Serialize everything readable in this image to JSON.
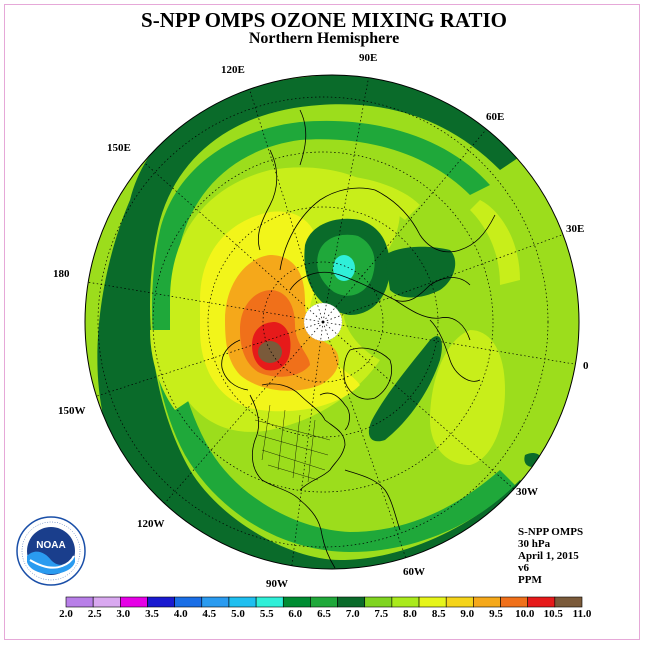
{
  "title": "S-NPP OMPS OZONE MIXING RATIO",
  "subtitle": "Northern Hemisphere",
  "longitude_labels": [
    {
      "text": "90E"
    },
    {
      "text": "60E"
    },
    {
      "text": "30E"
    },
    {
      "text": "0"
    },
    {
      "text": "30W"
    },
    {
      "text": "60W"
    },
    {
      "text": "90W"
    },
    {
      "text": "120W"
    },
    {
      "text": "150W"
    },
    {
      "text": "180"
    },
    {
      "text": "150E"
    },
    {
      "text": "120E"
    }
  ],
  "info_lines": [
    "S-NPP OMPS",
    "30 hPa",
    "April 1, 2015",
    "v6",
    "PPM"
  ],
  "logo_text": "NOAA",
  "logo_ring_text": "NATIONAL OCEANIC AND ATMOSPHERIC ADMINISTRATION · U.S. DEPARTMENT OF COMMERCE",
  "colorbar": {
    "labels": [
      "2.0",
      "2.5",
      "3.0",
      "3.5",
      "4.0",
      "4.5",
      "5.0",
      "5.5",
      "6.0",
      "6.5",
      "7.0",
      "7.5",
      "8.0",
      "8.5",
      "9.0",
      "9.5",
      "10.0",
      "10.5",
      "11.0"
    ],
    "colors": [
      "#b87fe8",
      "#d9a8f0",
      "#e600e6",
      "#1a1ad0",
      "#1a6ee6",
      "#2a9bf0",
      "#1fbff0",
      "#2fefd8",
      "#008c32",
      "#1fa83a",
      "#0a6b2a",
      "#80d420",
      "#aaea1c",
      "#e6f51a",
      "#f5d41a",
      "#f5a81a",
      "#f0701a",
      "#e61a1a",
      "#7a5a3a"
    ]
  },
  "colors": {
    "frame": "#e6a8d8",
    "dark_green": "#0a6b2a",
    "mid_green": "#1fa83a",
    "lime": "#9cdd1c",
    "yellow_green": "#c8ee1a",
    "yellow": "#f2f51a",
    "orange": "#f5a81a",
    "red": "#e61a1a",
    "brown": "#7a5a3a",
    "cyan": "#2fefd8",
    "coast": "#000000"
  }
}
